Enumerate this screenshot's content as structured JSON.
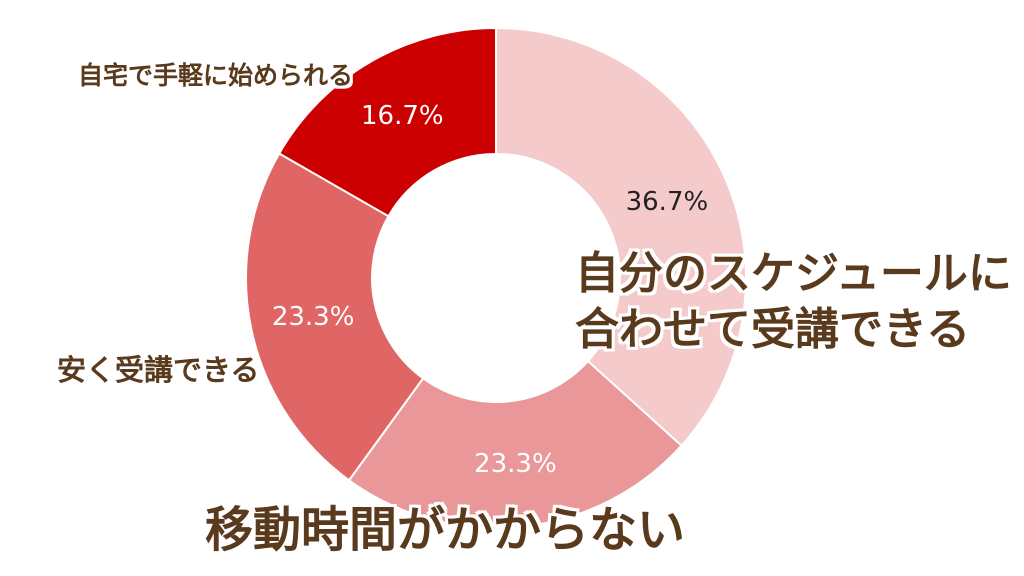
{
  "chart_data": {
    "type": "pie",
    "donut": true,
    "categories": [
      "自分のスケジュールに合わせて受講できる",
      "移動時間がかからない",
      "安く受講できる",
      "自宅で手軽に始められる"
    ],
    "category_lines": [
      [
        "自分のスケジュールに",
        "合わせて受講できる"
      ],
      [
        "移動時間がかからない"
      ],
      [
        "安く受講できる"
      ],
      [
        "自宅で手軽に始められる"
      ]
    ],
    "values": [
      36.7,
      23.3,
      23.3,
      16.7
    ],
    "value_labels": [
      "36.7%",
      "23.3%",
      "23.3%",
      "16.7%"
    ],
    "colors": [
      "#f4cacb",
      "#e99798",
      "#e06565",
      "#cc0000"
    ],
    "value_label_colors": [
      "#222222",
      "#ffffff",
      "#ffffff",
      "#ffffff"
    ],
    "start": "12 o'clock",
    "direction": "clockwise",
    "legend": "none"
  }
}
